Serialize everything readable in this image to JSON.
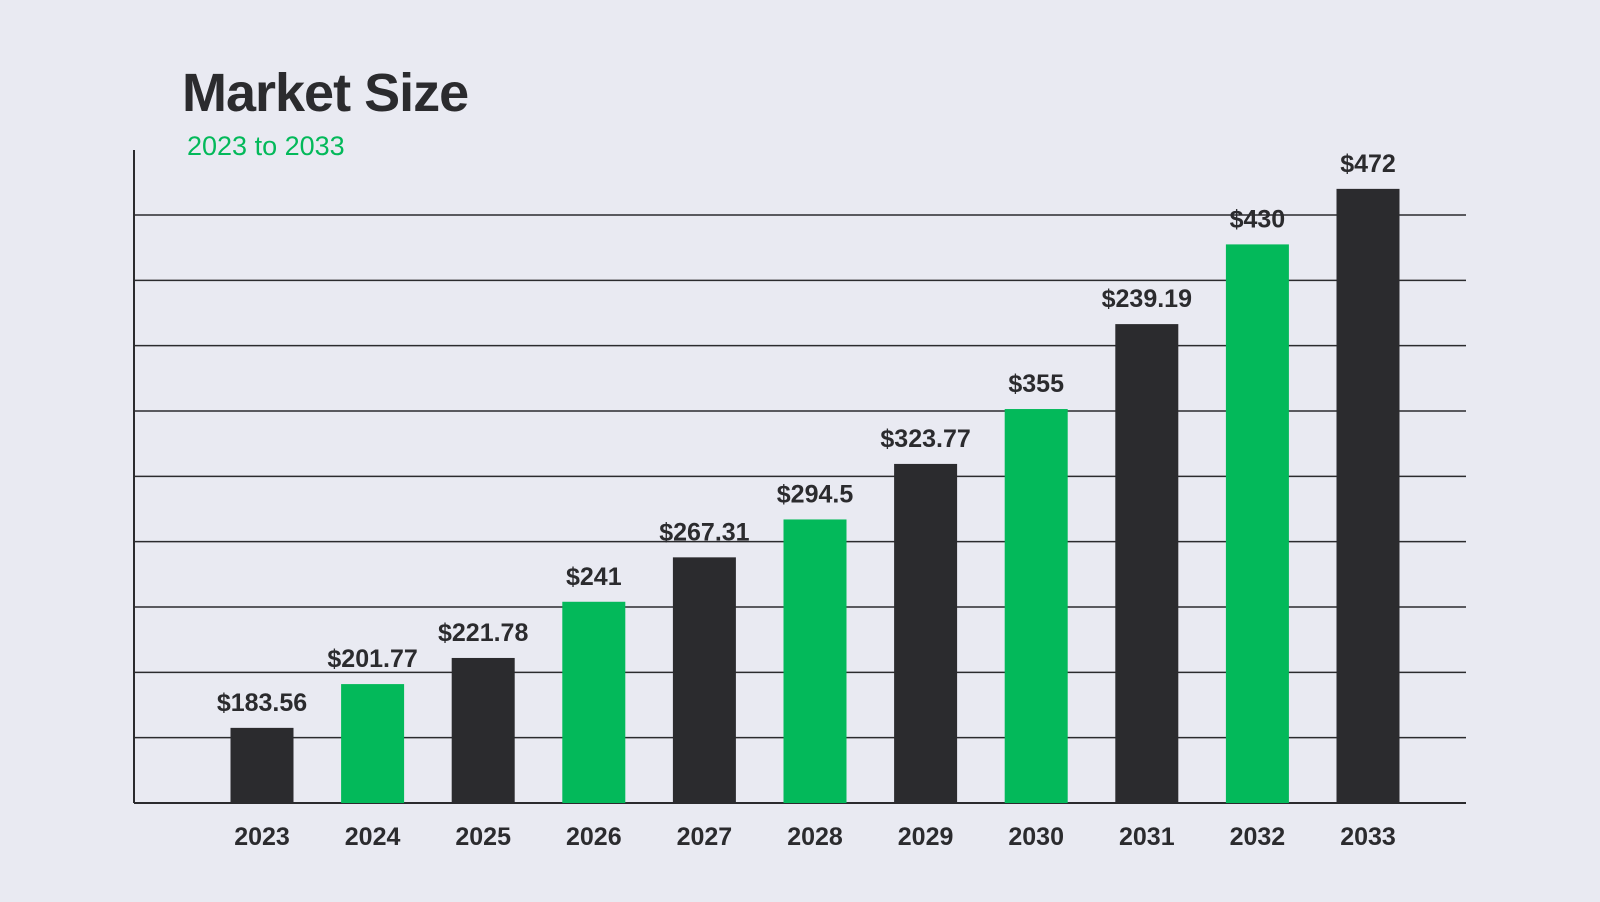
{
  "colors": {
    "background": "#e9eaf2",
    "dark_bar": "#2b2b2e",
    "green_bar": "#03b95a",
    "text": "#2b2b2e",
    "grid": "#2b2b2e"
  },
  "chart_data": {
    "type": "bar",
    "title": "Market Size",
    "subtitle": "2023 to 2033",
    "xlabel": "",
    "ylabel": "",
    "grid": true,
    "legend": "none",
    "categories": [
      "2023",
      "2024",
      "2025",
      "2026",
      "2027",
      "2028",
      "2029",
      "2030",
      "2031",
      "2032",
      "2033"
    ],
    "values": [
      183.56,
      201.77,
      221.78,
      241,
      267.31,
      294.5,
      323.77,
      355,
      239.19,
      430,
      472
    ],
    "value_labels": [
      "$183.56",
      "$201.77",
      "$221.78",
      "$241",
      "$267.31",
      "$294.5",
      "$323.77",
      "$355",
      "$239.19",
      "$430",
      "$472"
    ],
    "drawn_heights": [
      1.15,
      1.82,
      2.22,
      3.08,
      3.76,
      4.34,
      5.19,
      6.03,
      7.33,
      8.55,
      9.4
    ],
    "drawn_height_scale": [
      0,
      10
    ],
    "gridline_count": 9,
    "bar_colors": [
      "dark",
      "green",
      "dark",
      "green",
      "dark",
      "green",
      "dark",
      "green",
      "dark",
      "green",
      "dark"
    ]
  }
}
